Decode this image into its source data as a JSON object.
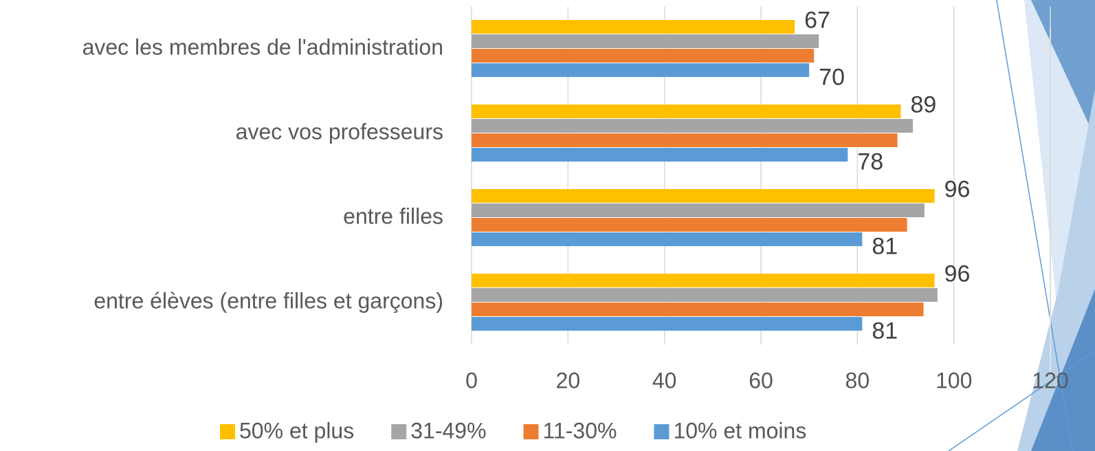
{
  "chart_data": {
    "type": "bar",
    "orientation": "horizontal",
    "categories": [
      "avec les membres de l'administration",
      "avec vos professeurs",
      "entre filles",
      "entre élèves (entre filles et garçons)"
    ],
    "series": [
      {
        "name": "50% et plus",
        "color": "#FFC000",
        "values": [
          67,
          89,
          96,
          96
        ],
        "data_labels": true,
        "label_side": "above"
      },
      {
        "name": "31-49%",
        "color": "#A5A5A5",
        "values": [
          72,
          91.5,
          93.9,
          96.6
        ],
        "data_labels": false
      },
      {
        "name": "11-30%",
        "color": "#ED7D31",
        "values": [
          71,
          88.3,
          90.3,
          93.7
        ],
        "data_labels": false
      },
      {
        "name": "10% et moins",
        "color": "#5B9BD5",
        "values": [
          70,
          78,
          81,
          81
        ],
        "data_labels": true,
        "label_side": "below"
      }
    ],
    "xlim": [
      0,
      120
    ],
    "xticks": [
      0,
      20,
      40,
      60,
      80,
      100,
      120
    ],
    "grid": true,
    "legend": "bottom"
  }
}
